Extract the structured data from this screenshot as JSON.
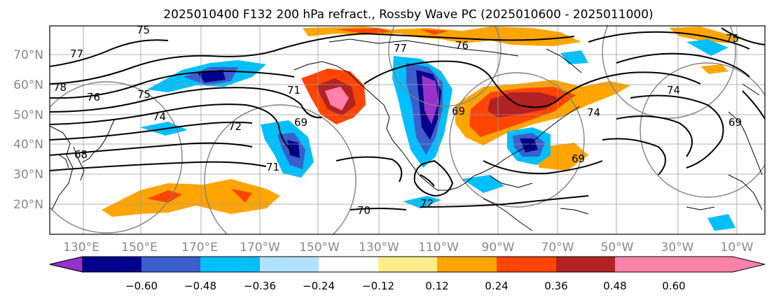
{
  "title": "2025010400 F132 200 hPa refract., Rossby Wave PC (2025010600 - 2025011000)",
  "lat_labels": [
    "70°N",
    "60°N",
    "50°N",
    "40°N",
    "30°N",
    "20°N"
  ],
  "lon_labels": [
    "130°E",
    "150°E",
    "170°E",
    "170°W",
    "150°W",
    "130°W",
    "110°W",
    "90°W",
    "70°W",
    "50°W",
    "30°W",
    "10°W"
  ],
  "contour_labels": [
    "75",
    "77",
    "78",
    "76",
    "75",
    "74",
    "71",
    "69",
    "72",
    "77",
    "76",
    "69",
    "68",
    "69",
    "74",
    "74",
    "75",
    "69",
    "70",
    "71",
    "72"
  ],
  "colorbar": {
    "ticks": [
      "−0.60",
      "−0.48",
      "−0.36",
      "−0.24",
      "−0.12",
      "0.12",
      "0.24",
      "0.36",
      "0.48",
      "0.60"
    ],
    "colors": [
      "#9932cc",
      "#00008b",
      "#3a5fcd",
      "#00bfff",
      "#b0e2ff",
      "#ffffff",
      "#ffec8b",
      "#ffa500",
      "#ff4500",
      "#b22222",
      "#ff82ab"
    ]
  }
}
